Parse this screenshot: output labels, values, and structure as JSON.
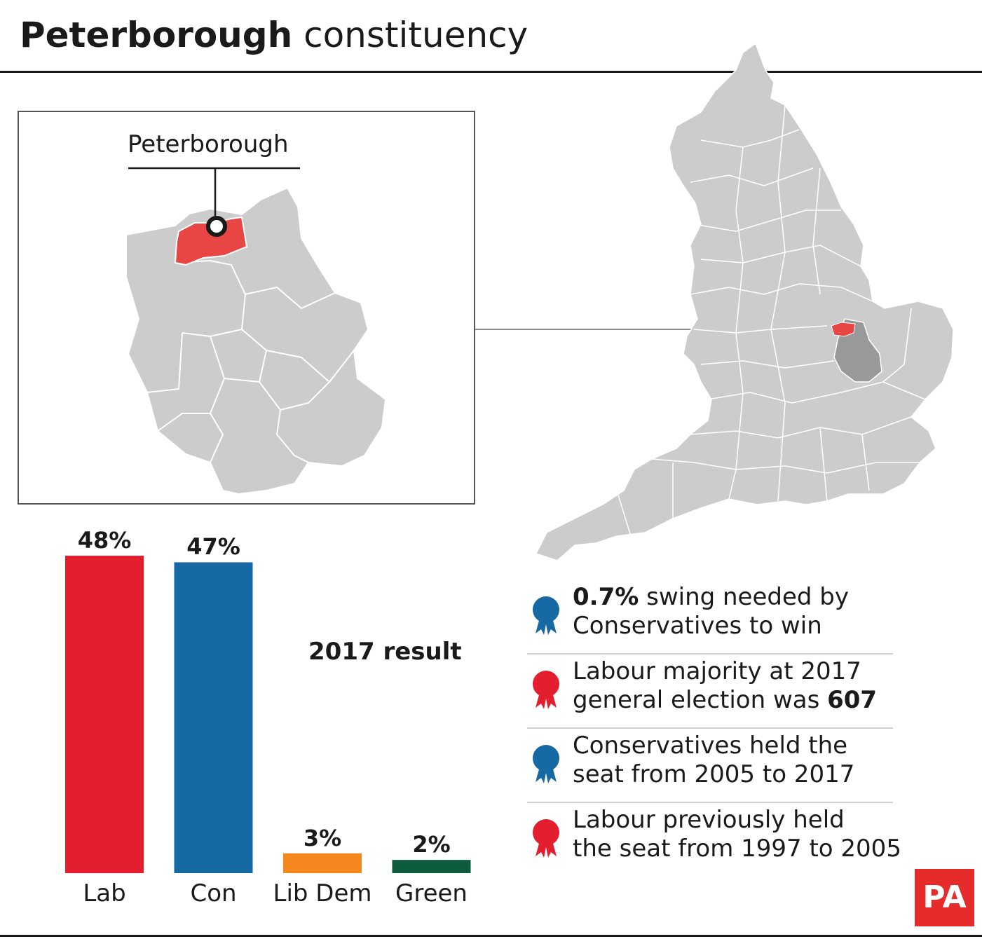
{
  "header": {
    "title_bold": "Peterborough",
    "title_rest": "constituency"
  },
  "inset": {
    "callout_label": "Peterborough"
  },
  "chart_data": {
    "type": "bar",
    "title": "2017 result",
    "categories": [
      "Lab",
      "Con",
      "Lib Dem",
      "Green"
    ],
    "values": [
      48,
      47,
      3,
      2
    ],
    "value_labels": [
      "48%",
      "47%",
      "3%",
      "2%"
    ],
    "colors": [
      "#e31e2f",
      "#1669a2",
      "#f5871f",
      "#0d5c3d"
    ],
    "ylim": [
      0,
      48
    ],
    "grid": false
  },
  "facts": [
    {
      "icon": "blue-rosette-icon",
      "color": "#1669a2",
      "line1_bold": "0.7%",
      "line1_rest": " swing needed by",
      "line2": "Conservatives to win",
      "line2_bold": ""
    },
    {
      "icon": "red-rosette-icon",
      "color": "#e31e2f",
      "line1_bold": "",
      "line1_rest": "Labour majority at 2017",
      "line2": "general election was ",
      "line2_bold": "607"
    },
    {
      "icon": "blue-rosette-icon",
      "color": "#1669a2",
      "line1_bold": "",
      "line1_rest": "Conservatives held the",
      "line2": "seat from 2005 to 2017",
      "line2_bold": ""
    },
    {
      "icon": "red-rosette-icon",
      "color": "#e31e2f",
      "line1_bold": "",
      "line1_rest": "Labour previously held",
      "line2": "the seat from 1997 to 2005",
      "line2_bold": ""
    }
  ],
  "logo": {
    "text": "PA",
    "color": "#e62b2b"
  },
  "map_colors": {
    "land": "#cccccc",
    "county": "#999999",
    "constituency": "#e84545"
  }
}
